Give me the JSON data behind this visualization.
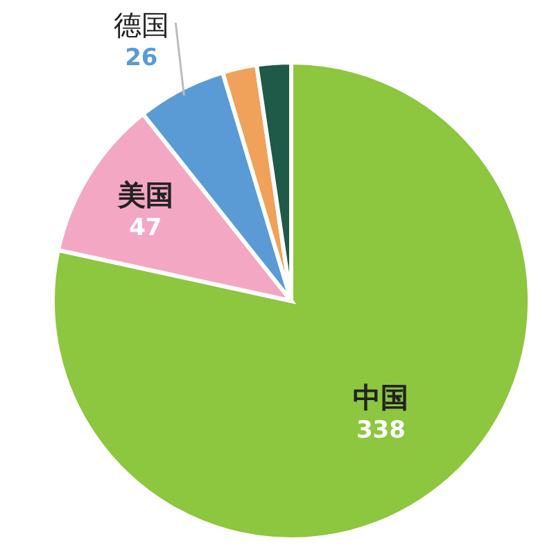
{
  "chart_data": {
    "type": "pie",
    "categories": [
      "中国",
      "美国",
      "德国",
      null,
      null
    ],
    "values": [
      338,
      47,
      26,
      10,
      10
    ],
    "colors": [
      "#8dc63f",
      "#f4a7c3",
      "#5b9bd5",
      "#f0a25a",
      "#1e5a47"
    ],
    "value_labels": [
      "338",
      "47",
      "26",
      null,
      null
    ],
    "legend": false
  }
}
